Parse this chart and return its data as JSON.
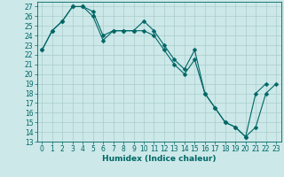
{
  "title": "",
  "xlabel": "Humidex (Indice chaleur)",
  "background_color": "#cce8e8",
  "grid_color": "#aacccc",
  "line_color": "#006666",
  "xlim": [
    -0.5,
    23.5
  ],
  "ylim": [
    13,
    27.5
  ],
  "yticks": [
    13,
    14,
    15,
    16,
    17,
    18,
    19,
    20,
    21,
    22,
    23,
    24,
    25,
    26,
    27
  ],
  "xticks": [
    0,
    1,
    2,
    3,
    4,
    5,
    6,
    7,
    8,
    9,
    10,
    11,
    12,
    13,
    14,
    15,
    16,
    17,
    18,
    19,
    20,
    21,
    22,
    23
  ],
  "line1_x": [
    0,
    1,
    2,
    3,
    4,
    5,
    6,
    7,
    8,
    9,
    10,
    11,
    12,
    13,
    14,
    15,
    16,
    17,
    18,
    19,
    20,
    21,
    22
  ],
  "line1_y": [
    22.5,
    24.5,
    25.5,
    27.0,
    27.0,
    26.5,
    24.0,
    24.5,
    24.5,
    24.5,
    25.5,
    24.5,
    23.0,
    21.5,
    20.5,
    22.5,
    18.0,
    16.5,
    15.0,
    14.5,
    13.5,
    18.0,
    19.0
  ],
  "line2_x": [
    0,
    1,
    2,
    3,
    4,
    5,
    6,
    7,
    8,
    9,
    10,
    11,
    12,
    13,
    14,
    15,
    16,
    17,
    18,
    19,
    20,
    21,
    22,
    23
  ],
  "line2_y": [
    22.5,
    24.5,
    25.5,
    27.0,
    27.0,
    26.0,
    23.5,
    24.5,
    24.5,
    24.5,
    24.5,
    24.0,
    22.5,
    21.0,
    20.0,
    21.5,
    18.0,
    16.5,
    15.0,
    14.5,
    13.5,
    14.5,
    18.0,
    19.0
  ],
  "markersize": 2.5,
  "linewidth": 0.8,
  "tick_labelsize": 5.5,
  "xlabel_fontsize": 6.5
}
